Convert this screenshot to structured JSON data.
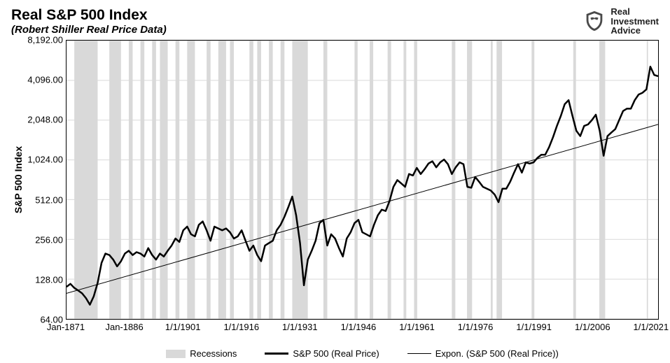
{
  "chart": {
    "type": "line",
    "title": "Real S&P 500 Index",
    "subtitle": "(Robert Shiller Real Price Data)",
    "y_axis_label": "S&P 500 Index",
    "background_color": "#ffffff",
    "border_color": "#000000",
    "grid_color": "#d9d9d9",
    "recession_band_color": "#d9d9d9",
    "title_fontsize": 21,
    "subtitle_fontsize": 15,
    "axis_tick_fontsize": 13,
    "axis_label_fontsize": 14,
    "y_scale": "log2",
    "ylim": [
      64,
      8192
    ],
    "y_ticks": [
      64.0,
      128.0,
      256.0,
      512.0,
      1024.0,
      2048.0,
      4096.0,
      8192.0
    ],
    "y_tick_labels": [
      "64.00",
      "128.00",
      "256.00",
      "512.00",
      "1,024.00",
      "2,048.00",
      "4,096.00",
      "8,192.00"
    ],
    "xlim": [
      1871,
      2023
    ],
    "x_ticks": [
      1871,
      1886,
      1901,
      1916,
      1931,
      1946,
      1961,
      1976,
      1991,
      2006,
      2021
    ],
    "x_tick_labels": [
      "Jan-1871",
      "Jan-1886",
      "1/1/1901",
      "1/1/1916",
      "1/1/1931",
      "1/1/1946",
      "1/1/1961",
      "1/1/1976",
      "1/1/1991",
      "1/1/2006",
      "1/1/2021"
    ],
    "series": {
      "recessions": {
        "label": "Recessions",
        "color": "#d9d9d9",
        "bands": [
          [
            1873,
            1879
          ],
          [
            1882,
            1885
          ],
          [
            1887,
            1888
          ],
          [
            1890,
            1891
          ],
          [
            1893,
            1894
          ],
          [
            1895,
            1897
          ],
          [
            1899,
            1900
          ],
          [
            1902,
            1904
          ],
          [
            1907,
            1908
          ],
          [
            1910,
            1912
          ],
          [
            1913,
            1914
          ],
          [
            1918,
            1919
          ],
          [
            1920,
            1921
          ],
          [
            1923,
            1924
          ],
          [
            1926,
            1927
          ],
          [
            1929,
            1933
          ],
          [
            1937,
            1938
          ],
          [
            1945,
            1945.8
          ],
          [
            1948.9,
            1949.8
          ],
          [
            1953.5,
            1954.4
          ],
          [
            1957.6,
            1958.3
          ],
          [
            1960.3,
            1961.1
          ],
          [
            1970,
            1970.9
          ],
          [
            1973.9,
            1975.2
          ],
          [
            1980,
            1980.5
          ],
          [
            1981.5,
            1982.9
          ],
          [
            1990.5,
            1991.2
          ],
          [
            2001.2,
            2001.9
          ],
          [
            2007.9,
            2009.4
          ],
          [
            2020.1,
            2020.4
          ]
        ]
      },
      "trend": {
        "label": "Expon. (S&P 500 (Real Price))",
        "color": "#000000",
        "line_width": 1,
        "start": {
          "x": 1871,
          "y": 100
        },
        "end": {
          "x": 2023,
          "y": 1900
        }
      },
      "price": {
        "label": "S&P 500 (Real Price)",
        "color": "#000000",
        "line_width": 2.5,
        "data": [
          [
            1871,
            112
          ],
          [
            1872,
            118
          ],
          [
            1873,
            110
          ],
          [
            1874,
            105
          ],
          [
            1875,
            100
          ],
          [
            1876,
            92
          ],
          [
            1877,
            82
          ],
          [
            1878,
            95
          ],
          [
            1879,
            120
          ],
          [
            1880,
            170
          ],
          [
            1881,
            200
          ],
          [
            1882,
            195
          ],
          [
            1883,
            180
          ],
          [
            1884,
            160
          ],
          [
            1885,
            175
          ],
          [
            1886,
            200
          ],
          [
            1887,
            210
          ],
          [
            1888,
            195
          ],
          [
            1889,
            205
          ],
          [
            1890,
            200
          ],
          [
            1891,
            190
          ],
          [
            1892,
            220
          ],
          [
            1893,
            195
          ],
          [
            1894,
            180
          ],
          [
            1895,
            200
          ],
          [
            1896,
            190
          ],
          [
            1897,
            210
          ],
          [
            1898,
            230
          ],
          [
            1899,
            260
          ],
          [
            1900,
            245
          ],
          [
            1901,
            300
          ],
          [
            1902,
            320
          ],
          [
            1903,
            280
          ],
          [
            1904,
            270
          ],
          [
            1905,
            330
          ],
          [
            1906,
            350
          ],
          [
            1907,
            300
          ],
          [
            1908,
            250
          ],
          [
            1909,
            320
          ],
          [
            1910,
            310
          ],
          [
            1911,
            300
          ],
          [
            1912,
            310
          ],
          [
            1913,
            290
          ],
          [
            1914,
            260
          ],
          [
            1915,
            270
          ],
          [
            1916,
            300
          ],
          [
            1917,
            250
          ],
          [
            1918,
            210
          ],
          [
            1919,
            230
          ],
          [
            1920,
            195
          ],
          [
            1921,
            175
          ],
          [
            1922,
            230
          ],
          [
            1923,
            240
          ],
          [
            1924,
            250
          ],
          [
            1925,
            300
          ],
          [
            1926,
            330
          ],
          [
            1927,
            380
          ],
          [
            1928,
            450
          ],
          [
            1929,
            540
          ],
          [
            1930,
            390
          ],
          [
            1931,
            240
          ],
          [
            1932,
            115
          ],
          [
            1933,
            180
          ],
          [
            1934,
            210
          ],
          [
            1935,
            250
          ],
          [
            1936,
            340
          ],
          [
            1937,
            360
          ],
          [
            1938,
            230
          ],
          [
            1939,
            280
          ],
          [
            1940,
            260
          ],
          [
            1941,
            220
          ],
          [
            1942,
            190
          ],
          [
            1943,
            260
          ],
          [
            1944,
            290
          ],
          [
            1945,
            340
          ],
          [
            1946,
            360
          ],
          [
            1947,
            290
          ],
          [
            1948,
            280
          ],
          [
            1949,
            270
          ],
          [
            1950,
            330
          ],
          [
            1951,
            390
          ],
          [
            1952,
            430
          ],
          [
            1953,
            420
          ],
          [
            1954,
            500
          ],
          [
            1955,
            640
          ],
          [
            1956,
            720
          ],
          [
            1957,
            680
          ],
          [
            1958,
            640
          ],
          [
            1959,
            800
          ],
          [
            1960,
            780
          ],
          [
            1961,
            890
          ],
          [
            1962,
            800
          ],
          [
            1963,
            870
          ],
          [
            1964,
            960
          ],
          [
            1965,
            1000
          ],
          [
            1966,
            900
          ],
          [
            1967,
            980
          ],
          [
            1968,
            1030
          ],
          [
            1969,
            950
          ],
          [
            1970,
            800
          ],
          [
            1971,
            900
          ],
          [
            1972,
            980
          ],
          [
            1973,
            950
          ],
          [
            1974,
            640
          ],
          [
            1975,
            630
          ],
          [
            1976,
            760
          ],
          [
            1977,
            700
          ],
          [
            1978,
            640
          ],
          [
            1979,
            620
          ],
          [
            1980,
            600
          ],
          [
            1981,
            560
          ],
          [
            1982,
            490
          ],
          [
            1983,
            620
          ],
          [
            1984,
            620
          ],
          [
            1985,
            700
          ],
          [
            1986,
            820
          ],
          [
            1987,
            950
          ],
          [
            1988,
            820
          ],
          [
            1989,
            980
          ],
          [
            1990,
            960
          ],
          [
            1991,
            980
          ],
          [
            1992,
            1060
          ],
          [
            1993,
            1120
          ],
          [
            1994,
            1120
          ],
          [
            1995,
            1280
          ],
          [
            1996,
            1520
          ],
          [
            1997,
            1850
          ],
          [
            1998,
            2200
          ],
          [
            1999,
            2700
          ],
          [
            2000,
            2900
          ],
          [
            2001,
            2200
          ],
          [
            2002,
            1700
          ],
          [
            2003,
            1550
          ],
          [
            2004,
            1850
          ],
          [
            2005,
            1900
          ],
          [
            2006,
            2050
          ],
          [
            2007,
            2250
          ],
          [
            2008,
            1700
          ],
          [
            2009,
            1100
          ],
          [
            2010,
            1550
          ],
          [
            2011,
            1650
          ],
          [
            2012,
            1750
          ],
          [
            2013,
            2050
          ],
          [
            2014,
            2400
          ],
          [
            2015,
            2500
          ],
          [
            2016,
            2500
          ],
          [
            2017,
            2900
          ],
          [
            2018,
            3200
          ],
          [
            2019,
            3300
          ],
          [
            2020,
            3500
          ],
          [
            2021,
            5200
          ],
          [
            2022,
            4500
          ],
          [
            2023,
            4400
          ]
        ]
      }
    },
    "legend": {
      "items": [
        {
          "key": "recessions",
          "label": "Recessions"
        },
        {
          "key": "price",
          "label": "S&P 500 (Real Price)"
        },
        {
          "key": "trend",
          "label": "Expon. (S&P 500 (Real Price))"
        }
      ]
    }
  },
  "logo": {
    "line1": "Real",
    "line2": "Investment",
    "line3": "Advice"
  }
}
